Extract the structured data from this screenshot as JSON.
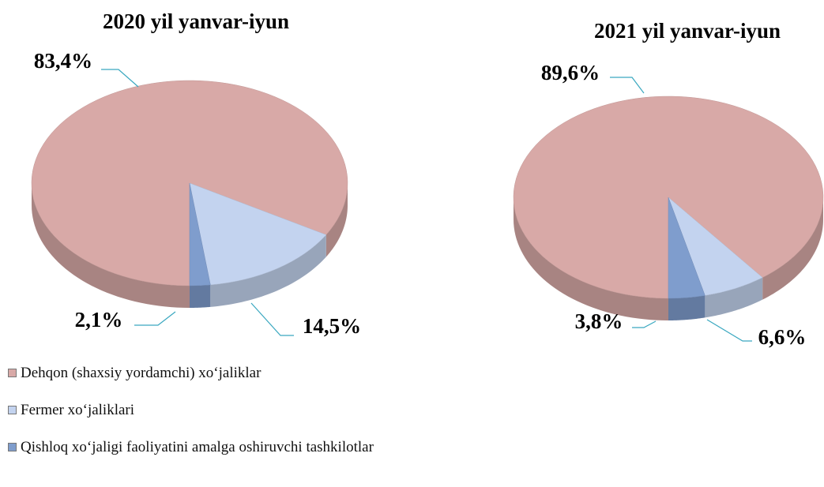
{
  "chart_data": [
    {
      "type": "pie",
      "title": "2020 yil yanvar-iyun",
      "values": [
        83.4,
        14.5,
        2.1
      ],
      "value_labels": [
        "83,4%",
        "14,5%",
        "2,1%"
      ]
    },
    {
      "type": "pie",
      "title": "2021 yil yanvar-iyun",
      "values": [
        89.6,
        6.6,
        3.8
      ],
      "value_labels": [
        "89,6%",
        "6,6%",
        "3,8%"
      ]
    }
  ],
  "legend": {
    "categories": [
      "Dehqon (shaxsiy yordamchi) xo‘jaliklar",
      "Fermer xo‘jaliklari",
      "Qishloq xo‘jaligi faoliyatini amalga oshiruvchi tashkilotlar"
    ],
    "colors": [
      "#d8a9a7",
      "#c3d3ef",
      "#7f9dcd"
    ]
  }
}
